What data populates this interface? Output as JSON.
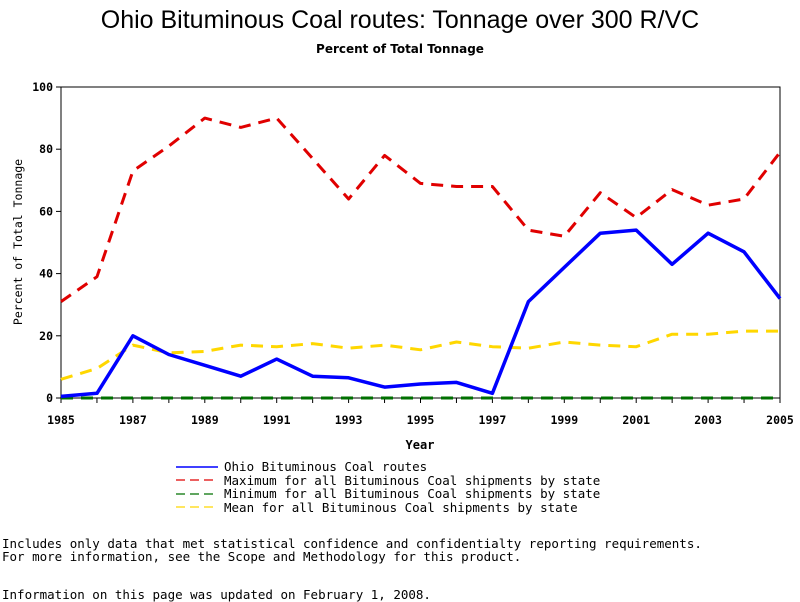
{
  "chart_data": {
    "type": "line",
    "title": "Ohio Bituminous Coal routes: Tonnage over 300 R/VC",
    "subtitle": "Percent of Total Tonnage",
    "xlabel": "Year",
    "ylabel": "Percent of Total Tonnage",
    "xlim": [
      1985,
      2005
    ],
    "ylim": [
      0,
      100
    ],
    "x_ticks": [
      1985,
      1987,
      1989,
      1991,
      1993,
      1995,
      1997,
      1999,
      2001,
      2003,
      2005
    ],
    "y_ticks": [
      0,
      20,
      40,
      60,
      80,
      100
    ],
    "x": [
      1985,
      1986,
      1987,
      1988,
      1989,
      1990,
      1991,
      1992,
      1993,
      1994,
      1995,
      1996,
      1997,
      1998,
      1999,
      2000,
      2001,
      2002,
      2003,
      2004,
      2005
    ],
    "grid": false,
    "legend_position": "bottom",
    "series": [
      {
        "name": "Ohio Bituminous Coal routes",
        "color": "#0000ff",
        "style": "solid",
        "values": [
          0.5,
          1.5,
          20,
          14,
          10.5,
          7,
          12.5,
          7,
          6.5,
          3.5,
          4.5,
          5,
          1.5,
          31,
          42,
          53,
          54,
          43,
          53,
          47,
          32
        ]
      },
      {
        "name": "Maximum for all Bituminous Coal shipments by state",
        "color": "#e00000",
        "style": "dashed",
        "values": [
          31,
          39,
          73,
          81,
          90,
          87,
          90,
          77,
          64,
          78,
          69,
          68,
          68,
          54,
          52,
          66,
          58,
          67,
          62,
          64,
          79
        ]
      },
      {
        "name": "Minimum for all Bituminous Coal shipments by state",
        "color": "#007000",
        "style": "dashed",
        "values": [
          0,
          0,
          0,
          0,
          0,
          0,
          0,
          0,
          0,
          0,
          0,
          0,
          0,
          0,
          0,
          0,
          0,
          0,
          0,
          0,
          0
        ]
      },
      {
        "name": "Mean for all Bituminous Coal shipments by state",
        "color": "#ffd700",
        "style": "dashed",
        "values": [
          6,
          9.5,
          17,
          14.5,
          15,
          17,
          16.5,
          17.5,
          16,
          17,
          15.5,
          18,
          16.5,
          16,
          18,
          17,
          16.5,
          20.5,
          20.5,
          21.5,
          21.5
        ]
      }
    ]
  },
  "notes": {
    "line1": "Includes only data that met statistical confidence and confidentialty reporting requirements.",
    "line2": "For more information, see the Scope and Methodology for this product.",
    "updated": "Information on this page was updated on February 1, 2008."
  }
}
